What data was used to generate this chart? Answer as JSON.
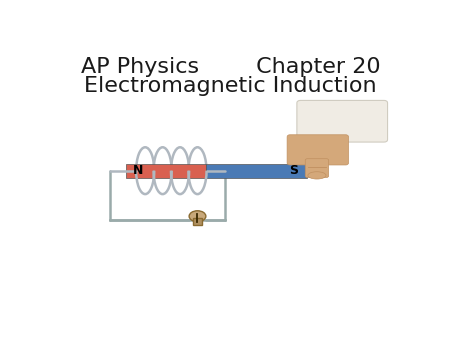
{
  "title_line1": "AP Physics        Chapter 20",
  "title_line2": "Electromagnetic Induction",
  "background_color": "#ffffff",
  "title_fontsize": 16,
  "title_color": "#1a1a1a",
  "fig_width": 4.5,
  "fig_height": 3.38,
  "dpi": 100,
  "coil_color": "#b0b8c0",
  "magnet_red_color": "#d96050",
  "magnet_blue_color": "#4a7ab5",
  "wire_color": "#9aabaa",
  "bulb_body_color": "#c8a87a",
  "bulb_base_color": "#b09060",
  "hand_skin": "#d4a87a",
  "hand_sleeve": "#f0ece4",
  "N_label": "N",
  "S_label": "S"
}
